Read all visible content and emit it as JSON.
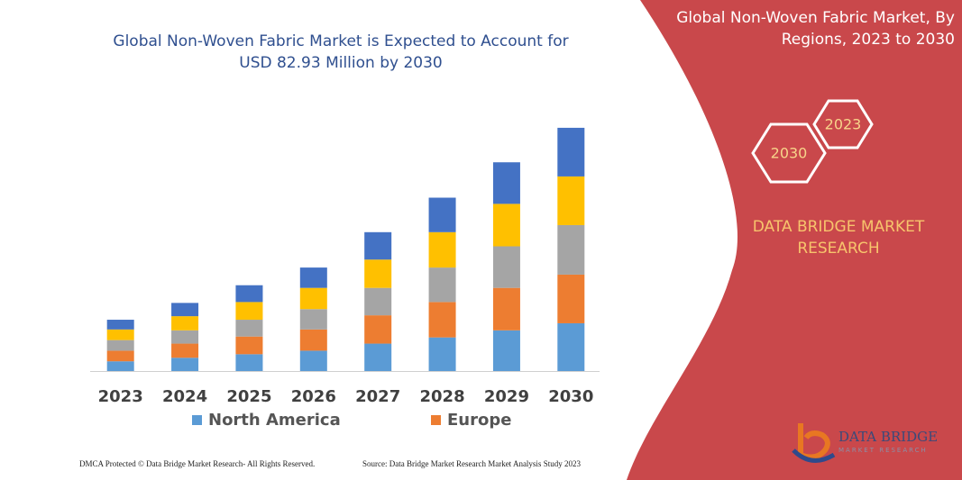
{
  "chart_data": {
    "type": "bar",
    "stacked": true,
    "title": "Global Non-Woven Fabric Market is Expected to Account for USD 82.93 Million by 2030",
    "categories": [
      "2023",
      "2024",
      "2025",
      "2026",
      "2027",
      "2028",
      "2029",
      "2030"
    ],
    "series": [
      {
        "name": "North America",
        "color": "#5b9bd5",
        "values": [
          11,
          15,
          19,
          23,
          31,
          38,
          46,
          54
        ]
      },
      {
        "name": "Europe",
        "color": "#ed7d31",
        "values": [
          12,
          16,
          20,
          24,
          32,
          40,
          48,
          55
        ]
      },
      {
        "color": "#a5a5a5",
        "values": [
          12,
          15,
          19,
          23,
          31,
          39,
          47,
          56
        ]
      },
      {
        "color": "#ffc000",
        "values": [
          12,
          16,
          20,
          24,
          32,
          40,
          48,
          55
        ]
      },
      {
        "color": "#4472c4",
        "values": [
          11,
          15,
          19,
          23,
          31,
          39,
          47,
          55
        ]
      }
    ],
    "ylim": [
      0,
      280
    ]
  },
  "panel": {
    "title": "Global Non-Woven Fabric Market, By Regions, 2023 to 2030",
    "hex_left": "2030",
    "hex_right": "2023",
    "brand": "DATA BRIDGE MARKET RESEARCH"
  },
  "logo": {
    "name": "DATA BRIDGE",
    "tagline": "MARKET RESEARCH"
  },
  "footer": {
    "left": "DMCA Protected © Data Bridge Market Research- All Rights Reserved.",
    "right": "Source: Data Bridge Market Research Market Analysis Study 2023"
  }
}
